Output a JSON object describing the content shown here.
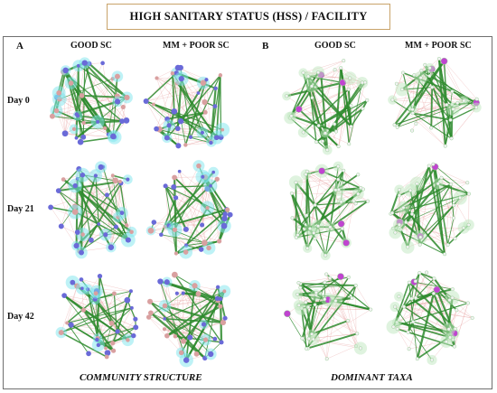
{
  "title": "HIGH SANITARY STATUS (HSS) / FACILITY",
  "panels": [
    {
      "letter": "A",
      "columns": [
        "GOOD SC",
        "MM + POOR SC"
      ],
      "caption": "COMMUNITY STRUCTURE"
    },
    {
      "letter": "B",
      "columns": [
        "GOOD SC",
        "MM + POOR SC"
      ],
      "caption": "DOMINANT TAXA"
    }
  ],
  "rows": [
    "Day 0",
    "Day 21",
    "Day 42"
  ],
  "colors": {
    "positive_edge": "#2e8b2e",
    "negative_edge": "#e8a3a3",
    "node_blue": "#6a6ad8",
    "node_pink": "#d9a0a0",
    "node_highlight": "#c044d0",
    "halo_cyan": "#7ee6ee",
    "halo_green": "#bfe8bf",
    "frame": "#6f6f6f",
    "title_border": "#c9a36a"
  }
}
